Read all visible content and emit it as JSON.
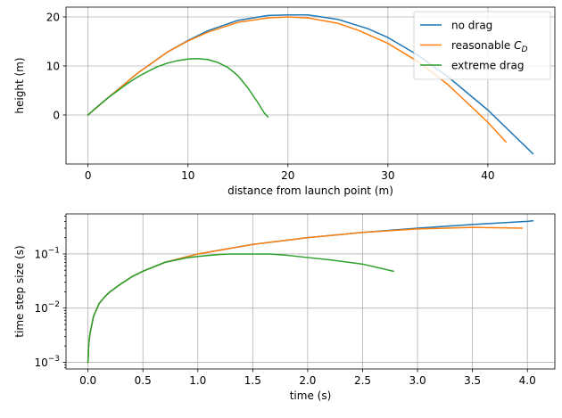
{
  "chart_data": [
    {
      "type": "line",
      "xlabel": "distance from launch point (m)",
      "ylabel": "height (m)",
      "xlim": [
        -2.2,
        46.7
      ],
      "ylim": [
        -10.0,
        22.0
      ],
      "xticks": [
        0,
        10,
        20,
        30,
        40
      ],
      "yticks": [
        0,
        10,
        20
      ],
      "grid": true,
      "legend": "top-right",
      "series": [
        {
          "name": "no drag",
          "color": "#1f77b4",
          "x": [
            0,
            2,
            5,
            8,
            10,
            12,
            15,
            18,
            20,
            22,
            25,
            28,
            30,
            33,
            36,
            40,
            44.5
          ],
          "y": [
            0,
            3.5,
            8.6,
            12.9,
            15.2,
            17.2,
            19.3,
            20.3,
            20.4,
            20.4,
            19.5,
            17.6,
            15.8,
            12.2,
            7.8,
            1.0,
            -7.9
          ]
        },
        {
          "name": "reasonable $C_D$",
          "label_text": "reasonable ",
          "label_sym": "C",
          "label_sub": "D",
          "color": "#ff7f0e",
          "x": [
            0,
            2,
            5,
            8,
            10,
            12,
            15,
            18,
            20,
            22,
            25,
            27,
            30,
            33,
            36,
            40,
            41.8
          ],
          "y": [
            0,
            3.5,
            8.6,
            12.9,
            15.1,
            16.9,
            18.9,
            19.8,
            20.0,
            19.8,
            18.7,
            17.3,
            14.6,
            10.9,
            6.2,
            -1.5,
            -5.5
          ]
        },
        {
          "name": "extreme drag",
          "color": "#2ca02c",
          "x": [
            0,
            1,
            2,
            3,
            4,
            5,
            6,
            7,
            8,
            9,
            10,
            11,
            12,
            13,
            14,
            15,
            16,
            17,
            17.6,
            18.0
          ],
          "y": [
            0,
            1.8,
            3.5,
            5.0,
            6.5,
            7.8,
            8.9,
            9.9,
            10.6,
            11.1,
            11.4,
            11.5,
            11.3,
            10.7,
            9.7,
            8.0,
            5.5,
            2.5,
            0.5,
            -0.4
          ]
        }
      ]
    },
    {
      "type": "line",
      "xlabel": "time (s)",
      "ylabel": "time step size (s)",
      "xlim": [
        -0.2,
        4.25
      ],
      "ylim": [
        0.00075,
        0.55
      ],
      "yscale": "log",
      "xticks": [
        0.0,
        0.5,
        1.0,
        1.5,
        2.0,
        2.5,
        3.0,
        3.5,
        4.0
      ],
      "xtick_labels": [
        "0.0",
        "0.5",
        "1.0",
        "1.5",
        "2.0",
        "2.5",
        "3.0",
        "3.5",
        "4.0"
      ],
      "yticks": [
        0.001,
        0.01,
        0.1
      ],
      "ytick_labels": [
        {
          "base": "10",
          "exp": "−3"
        },
        {
          "base": "10",
          "exp": "−2"
        },
        {
          "base": "10",
          "exp": "−1"
        }
      ],
      "grid": true,
      "series": [
        {
          "name": "no drag",
          "color": "#1f77b4",
          "x": [
            0.0,
            0.005,
            0.01,
            0.02,
            0.05,
            0.1,
            0.15,
            0.2,
            0.3,
            0.4,
            0.5,
            0.7,
            1.0,
            1.5,
            2.0,
            2.5,
            3.0,
            3.5,
            4.0,
            4.05
          ],
          "y": [
            0.001,
            0.0018,
            0.0025,
            0.0035,
            0.007,
            0.012,
            0.016,
            0.02,
            0.028,
            0.038,
            0.048,
            0.07,
            0.1,
            0.15,
            0.2,
            0.25,
            0.3,
            0.35,
            0.4,
            0.41
          ]
        },
        {
          "name": "reasonable $C_D$",
          "color": "#ff7f0e",
          "x": [
            0.0,
            0.005,
            0.01,
            0.02,
            0.05,
            0.1,
            0.15,
            0.2,
            0.3,
            0.4,
            0.5,
            0.7,
            1.0,
            1.5,
            2.0,
            2.5,
            3.0,
            3.5,
            3.95
          ],
          "y": [
            0.001,
            0.0018,
            0.0025,
            0.0035,
            0.007,
            0.012,
            0.016,
            0.02,
            0.028,
            0.038,
            0.048,
            0.07,
            0.1,
            0.15,
            0.2,
            0.25,
            0.29,
            0.31,
            0.3
          ]
        },
        {
          "name": "extreme drag",
          "color": "#2ca02c",
          "x": [
            0.0,
            0.005,
            0.01,
            0.02,
            0.05,
            0.1,
            0.15,
            0.2,
            0.3,
            0.4,
            0.5,
            0.7,
            0.9,
            1.0,
            1.2,
            1.3,
            1.4,
            1.6,
            1.65,
            1.8,
            2.0,
            2.2,
            2.5,
            2.78
          ],
          "y": [
            0.001,
            0.0018,
            0.0025,
            0.0035,
            0.007,
            0.012,
            0.016,
            0.02,
            0.028,
            0.038,
            0.048,
            0.07,
            0.085,
            0.09,
            0.098,
            0.1,
            0.1,
            0.1,
            0.1,
            0.095,
            0.086,
            0.078,
            0.065,
            0.048
          ]
        }
      ]
    }
  ]
}
